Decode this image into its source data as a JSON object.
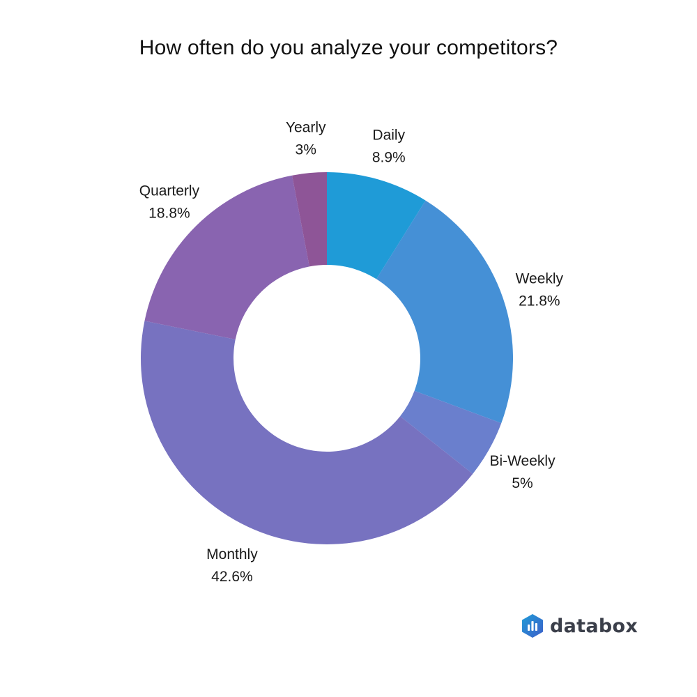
{
  "chart_data": {
    "type": "pie",
    "style": "donut",
    "title": "How often do you analyze your competitors?",
    "start": "top",
    "direction": "clockwise",
    "slices": [
      {
        "label": "Daily",
        "value": 8.9,
        "value_label": "8.9%",
        "color": "#1f9bd7"
      },
      {
        "label": "Weekly",
        "value": 21.8,
        "value_label": "21.8%",
        "color": "#4590d6"
      },
      {
        "label": "Bi-Weekly",
        "value": 5,
        "value_label": "5%",
        "color": "#6a7fcd"
      },
      {
        "label": "Monthly",
        "value": 42.6,
        "value_label": "42.6%",
        "color": "#7772c0"
      },
      {
        "label": "Quarterly",
        "value": 18.8,
        "value_label": "18.8%",
        "color": "#8964b0"
      },
      {
        "label": "Yearly",
        "value": 3,
        "value_label": "3%",
        "color": "#8e5597"
      }
    ],
    "legend": "none"
  },
  "branding": {
    "logo_text": "databox",
    "logo_icon": "databox-logo-icon",
    "logo_colors": [
      "#1f9bd7",
      "#3d6fd0"
    ]
  }
}
